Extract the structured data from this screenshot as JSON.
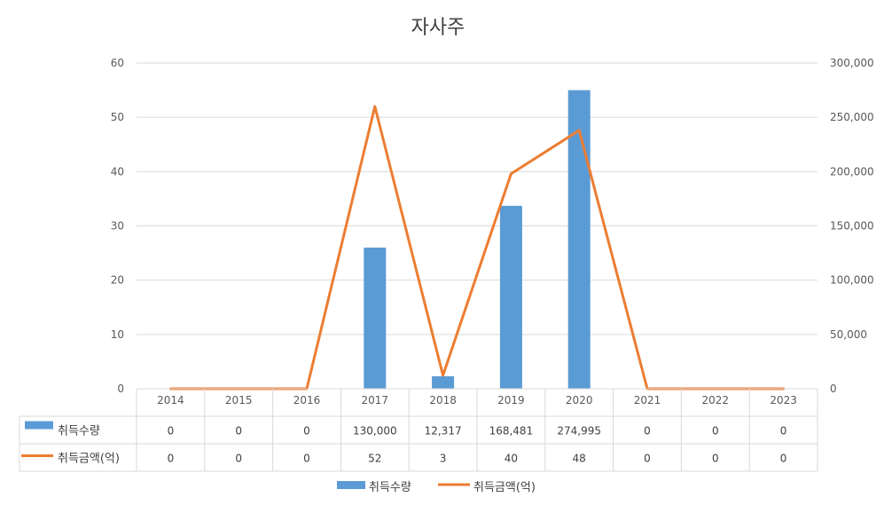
{
  "chart_data": {
    "type": "bar",
    "title": "자사주",
    "categories": [
      "2014",
      "2015",
      "2016",
      "2017",
      "2018",
      "2019",
      "2020",
      "2021",
      "2022",
      "2023"
    ],
    "ylim_left": [
      0,
      60
    ],
    "ylim_right": [
      0,
      300000
    ],
    "left_ticks": [
      "0",
      "10",
      "20",
      "30",
      "40",
      "50",
      "60"
    ],
    "right_ticks": [
      "0",
      "50,000",
      "100,000",
      "150,000",
      "200,000",
      "250,000",
      "300,000"
    ],
    "grid": true,
    "legend_position": "bottom",
    "series": [
      {
        "name": "취득수량",
        "chart_type": "bar",
        "axis": "left",
        "color": "#5B9BD5",
        "values": [
          0,
          0,
          0,
          26,
          2.3,
          33.7,
          55,
          0,
          0,
          0
        ],
        "table_values": [
          "0",
          "0",
          "0",
          "130,000",
          "12,317",
          "168,481",
          "274,995",
          "0",
          "0",
          "0"
        ]
      },
      {
        "name": "취득금액(억)",
        "chart_type": "line",
        "axis": "right",
        "color": "#ED7D31",
        "values": [
          0,
          0,
          0,
          260000,
          12317,
          198000,
          238000,
          0,
          0,
          0
        ],
        "table_values": [
          "0",
          "0",
          "0",
          "52",
          "3",
          "40",
          "48",
          "0",
          "0",
          "0"
        ]
      }
    ]
  }
}
